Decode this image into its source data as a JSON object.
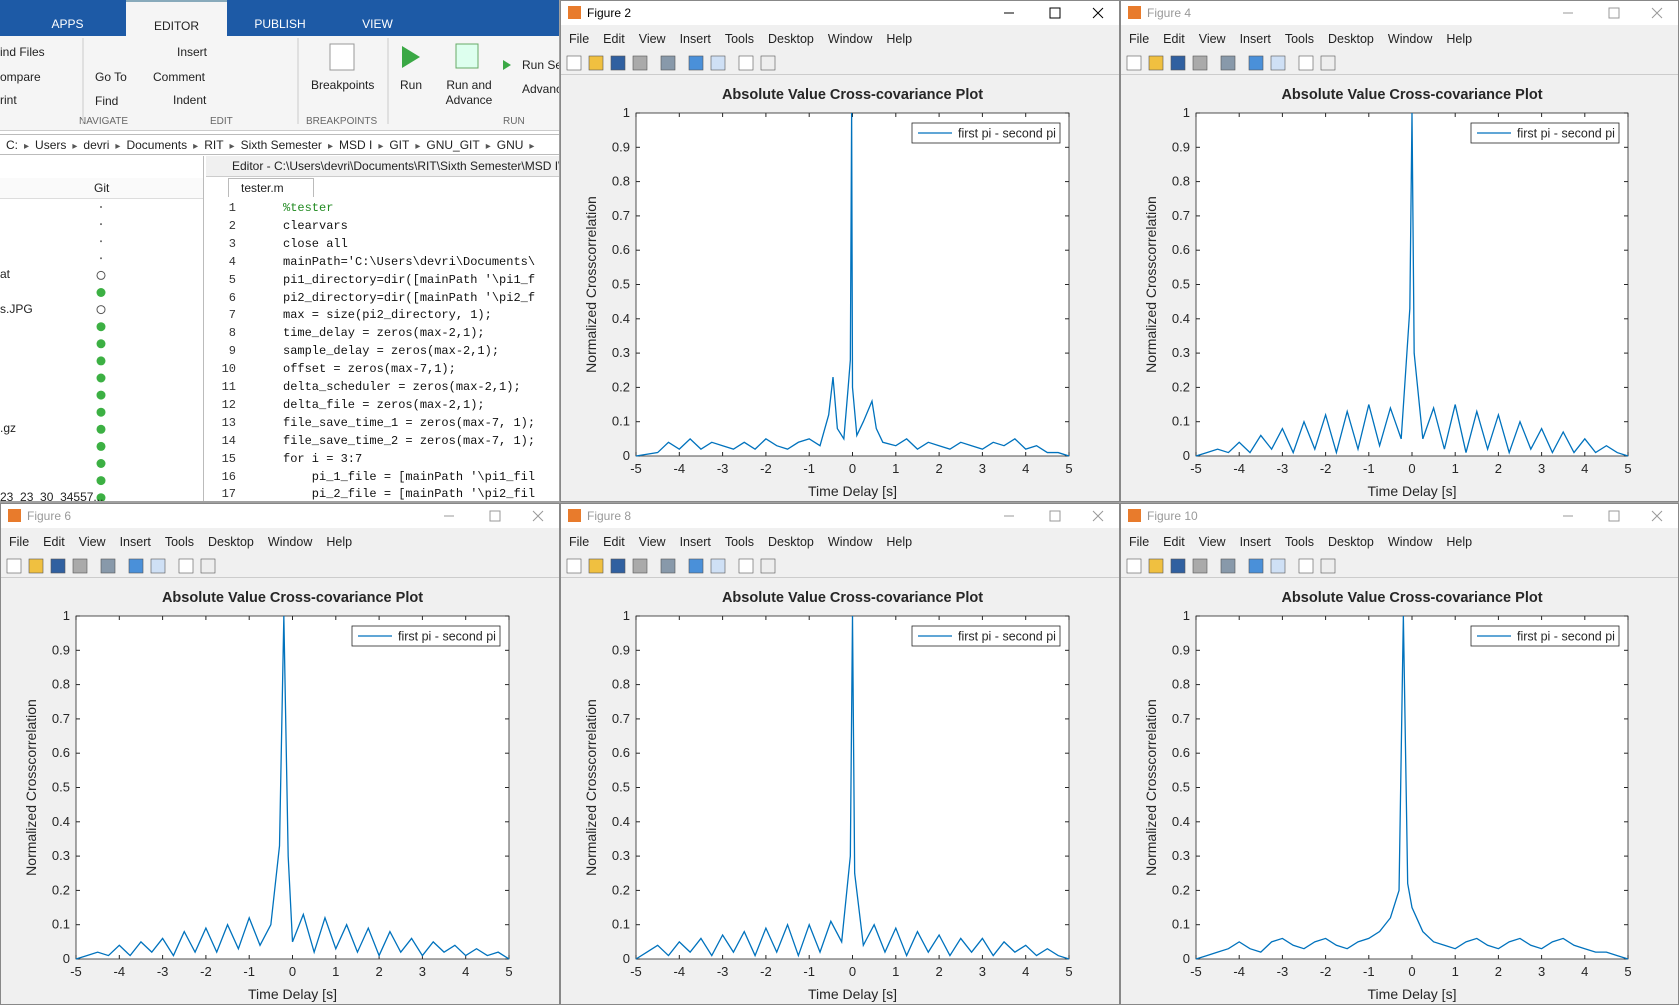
{
  "editor": {
    "tabs": [
      "APPS",
      "EDITOR",
      "PUBLISH",
      "VIEW"
    ],
    "toolbar": {
      "find_files": "ind Files",
      "compare": "ompare",
      "print": "rint",
      "go_to": "Go To",
      "find": "Find",
      "insert": "Insert",
      "comment": "Comment",
      "indent": "Indent",
      "breakpoints": "Breakpoints",
      "run": "Run",
      "run_and_advance": "Run and Advance",
      "run_section": "Run Se",
      "advance": "Advanc",
      "sections": [
        "NAVIGATE",
        "EDIT",
        "BREAKPOINTS",
        "RUN"
      ]
    },
    "path": [
      "C:",
      "Users",
      "devri",
      "Documents",
      "RIT",
      "Sixth Semester",
      "MSD I",
      "GIT",
      "GNU_GIT",
      "GNU"
    ],
    "files_header": "Git",
    "files": [
      "at",
      "s.JPG",
      ".gz",
      "23_23_30_34557..."
    ],
    "editor_title": "Editor - C:\\Users\\devri\\Documents\\RIT\\Sixth Semester\\MSD I\\",
    "file_tab": "tester.m",
    "line_numbers": [
      1,
      2,
      3,
      4,
      5,
      6,
      7,
      8,
      9,
      10,
      11,
      12,
      13,
      14,
      15,
      16,
      17
    ],
    "code": [
      "%tester",
      "clearvars",
      "close all",
      "mainPath='C:\\Users\\devri\\Documents\\",
      "pi1_directory=dir([mainPath '\\pi1_f",
      "pi2_directory=dir([mainPath '\\pi2_f",
      "max = size(pi2_directory, 1);",
      "time_delay = zeros(max-2,1);",
      "sample_delay = zeros(max-2,1);",
      "offset = zeros(max-7,1);",
      "delta_scheduler = zeros(max-2,1);",
      "delta_file = zeros(max-2,1);",
      "file_save_time_1 = zeros(max-7, 1);",
      "file_save_time_2 = zeros(max-7, 1);",
      "for i = 3:7",
      "    pi_1_file = [mainPath '\\pi1_fil",
      "    pi_2_file = [mainPath '\\pi2_fil"
    ]
  },
  "figure_menu": [
    "File",
    "Edit",
    "View",
    "Insert",
    "Tools",
    "Desktop",
    "Window",
    "Help"
  ],
  "windows": [
    {
      "title": "Figure 2",
      "active": true
    },
    {
      "title": "Figure 4",
      "active": false
    },
    {
      "title": "Figure 6",
      "active": false
    },
    {
      "title": "Figure 8",
      "active": false
    },
    {
      "title": "Figure 10",
      "active": false
    }
  ],
  "chart_data": [
    {
      "type": "line",
      "title": "Absolute Value Cross-covariance Plot",
      "xlabel": "Time Delay [s]",
      "ylabel": "Normalized Crosscorrelation",
      "x": [
        -5,
        -4.5,
        -4.25,
        -4,
        -3.75,
        -3.5,
        -3.25,
        -3,
        -2.75,
        -2.5,
        -2.25,
        -2,
        -1.75,
        -1.5,
        -1.25,
        -1,
        -0.75,
        -0.55,
        -0.45,
        -0.35,
        -0.2,
        -0.1,
        -0.05,
        -0.02,
        0,
        0.1,
        0.25,
        0.45,
        0.55,
        0.7,
        1,
        1.25,
        1.5,
        1.75,
        2,
        2.25,
        2.5,
        2.75,
        3,
        3.25,
        3.5,
        3.75,
        4,
        4.25,
        4.5,
        4.75,
        5
      ],
      "series": [
        {
          "name": "first pi - second pi",
          "color": "#0072bd",
          "values": [
            0,
            0.01,
            0.04,
            0.02,
            0.05,
            0.02,
            0.04,
            0.03,
            0.02,
            0.04,
            0.02,
            0.05,
            0.03,
            0.02,
            0.04,
            0.05,
            0.03,
            0.12,
            0.23,
            0.08,
            0.05,
            0.2,
            0.28,
            1,
            0.2,
            0.06,
            0.1,
            0.16,
            0.08,
            0.04,
            0.03,
            0.05,
            0.02,
            0.04,
            0.03,
            0.02,
            0.04,
            0.03,
            0.02,
            0.04,
            0.03,
            0.05,
            0.02,
            0.03,
            0.01,
            0.01,
            0
          ]
        }
      ],
      "xlim": [
        -5,
        5
      ],
      "ylim": [
        0,
        1
      ],
      "xticks": [
        -5,
        -4,
        -3,
        -2,
        -1,
        0,
        1,
        2,
        3,
        4,
        5
      ],
      "yticks": [
        0,
        0.1,
        0.2,
        0.3,
        0.4,
        0.5,
        0.6,
        0.7,
        0.8,
        0.9,
        1
      ],
      "legend": "upper right"
    },
    {
      "type": "line",
      "title": "Absolute Value Cross-covariance Plot",
      "xlabel": "Time Delay [s]",
      "ylabel": "Normalized Crosscorrelation",
      "x": [
        -5,
        -4.75,
        -4.5,
        -4.25,
        -4,
        -3.75,
        -3.5,
        -3.25,
        -3,
        -2.75,
        -2.5,
        -2.25,
        -2,
        -1.75,
        -1.5,
        -1.25,
        -1,
        -0.75,
        -0.5,
        -0.25,
        -0.05,
        0,
        0.05,
        0.25,
        0.5,
        0.75,
        1,
        1.25,
        1.5,
        1.75,
        2,
        2.25,
        2.5,
        2.75,
        3,
        3.25,
        3.5,
        3.75,
        4,
        4.25,
        4.5,
        4.75,
        5
      ],
      "series": [
        {
          "name": "first pi - second pi",
          "color": "#0072bd",
          "values": [
            0,
            0.01,
            0.02,
            0.01,
            0.04,
            0.01,
            0.06,
            0.02,
            0.08,
            0.01,
            0.1,
            0.02,
            0.12,
            0.01,
            0.13,
            0.02,
            0.15,
            0.03,
            0.14,
            0.05,
            0.43,
            1,
            0.3,
            0.05,
            0.14,
            0.02,
            0.15,
            0.01,
            0.13,
            0.02,
            0.12,
            0.01,
            0.1,
            0.02,
            0.08,
            0.01,
            0.07,
            0.01,
            0.05,
            0.01,
            0.03,
            0.01,
            0
          ]
        }
      ],
      "xlim": [
        -5,
        5
      ],
      "ylim": [
        0,
        1
      ],
      "xticks": [
        -5,
        -4,
        -3,
        -2,
        -1,
        0,
        1,
        2,
        3,
        4,
        5
      ],
      "yticks": [
        0,
        0.1,
        0.2,
        0.3,
        0.4,
        0.5,
        0.6,
        0.7,
        0.8,
        0.9,
        1
      ],
      "legend": "upper right"
    },
    {
      "type": "line",
      "title": "Absolute Value Cross-covariance Plot",
      "xlabel": "Time Delay [s]",
      "ylabel": "Normalized Crosscorrelation",
      "x": [
        -5,
        -4.75,
        -4.5,
        -4.25,
        -4,
        -3.75,
        -3.5,
        -3.25,
        -3,
        -2.75,
        -2.5,
        -2.25,
        -2,
        -1.75,
        -1.5,
        -1.25,
        -1,
        -0.75,
        -0.5,
        -0.3,
        -0.2,
        -0.1,
        0,
        0.25,
        0.5,
        0.75,
        1,
        1.25,
        1.5,
        1.75,
        2,
        2.25,
        2.5,
        2.75,
        3,
        3.25,
        3.5,
        3.75,
        4,
        4.25,
        4.5,
        4.75,
        5
      ],
      "series": [
        {
          "name": "first pi - second pi",
          "color": "#0072bd",
          "values": [
            0,
            0.01,
            0.02,
            0.01,
            0.04,
            0.01,
            0.05,
            0.02,
            0.06,
            0.01,
            0.08,
            0.02,
            0.09,
            0.02,
            0.1,
            0.03,
            0.12,
            0.04,
            0.1,
            0.33,
            1,
            0.3,
            0.05,
            0.13,
            0.02,
            0.12,
            0.03,
            0.1,
            0.02,
            0.09,
            0.01,
            0.08,
            0.02,
            0.06,
            0.01,
            0.05,
            0.02,
            0.04,
            0.01,
            0.03,
            0.01,
            0.02,
            0
          ]
        }
      ],
      "xlim": [
        -5,
        5
      ],
      "ylim": [
        0,
        1
      ],
      "xticks": [
        -5,
        -4,
        -3,
        -2,
        -1,
        0,
        1,
        2,
        3,
        4,
        5
      ],
      "yticks": [
        0,
        0.1,
        0.2,
        0.3,
        0.4,
        0.5,
        0.6,
        0.7,
        0.8,
        0.9,
        1
      ],
      "legend": "upper right"
    },
    {
      "type": "line",
      "title": "Absolute Value Cross-covariance Plot",
      "xlabel": "Time Delay [s]",
      "ylabel": "Normalized Crosscorrelation",
      "x": [
        -5,
        -4.75,
        -4.5,
        -4.25,
        -4,
        -3.75,
        -3.5,
        -3.25,
        -3,
        -2.75,
        -2.5,
        -2.25,
        -2,
        -1.75,
        -1.5,
        -1.25,
        -1,
        -0.75,
        -0.5,
        -0.25,
        -0.05,
        0,
        0.05,
        0.25,
        0.5,
        0.75,
        1,
        1.25,
        1.5,
        1.75,
        2,
        2.25,
        2.5,
        2.75,
        3,
        3.25,
        3.5,
        3.75,
        4,
        4.25,
        4.5,
        4.75,
        5
      ],
      "series": [
        {
          "name": "first pi - second pi",
          "color": "#0072bd",
          "values": [
            0,
            0.02,
            0.04,
            0.01,
            0.05,
            0.02,
            0.06,
            0.01,
            0.07,
            0.02,
            0.08,
            0.01,
            0.09,
            0.02,
            0.1,
            0.01,
            0.1,
            0.02,
            0.11,
            0.05,
            0.3,
            1,
            0.25,
            0.04,
            0.1,
            0.02,
            0.09,
            0.01,
            0.08,
            0.02,
            0.07,
            0.01,
            0.06,
            0.02,
            0.06,
            0.01,
            0.05,
            0.02,
            0.04,
            0.01,
            0.03,
            0.01,
            0
          ]
        }
      ],
      "xlim": [
        -5,
        5
      ],
      "ylim": [
        0,
        1
      ],
      "xticks": [
        -5,
        -4,
        -3,
        -2,
        -1,
        0,
        1,
        2,
        3,
        4,
        5
      ],
      "yticks": [
        0,
        0.1,
        0.2,
        0.3,
        0.4,
        0.5,
        0.6,
        0.7,
        0.8,
        0.9,
        1
      ],
      "legend": "upper right"
    },
    {
      "type": "line",
      "title": "Absolute Value Cross-covariance Plot",
      "xlabel": "Time Delay [s]",
      "ylabel": "Normalized Crosscorrelation",
      "x": [
        -5,
        -4.75,
        -4.5,
        -4.25,
        -4,
        -3.75,
        -3.5,
        -3.25,
        -3,
        -2.75,
        -2.5,
        -2.25,
        -2,
        -1.75,
        -1.5,
        -1.25,
        -1,
        -0.75,
        -0.5,
        -0.3,
        -0.2,
        -0.1,
        0,
        0.25,
        0.5,
        0.75,
        1,
        1.25,
        1.5,
        1.75,
        2,
        2.25,
        2.5,
        2.75,
        3,
        3.25,
        3.5,
        3.75,
        4,
        4.25,
        4.5,
        4.75,
        5
      ],
      "series": [
        {
          "name": "first pi - second pi",
          "color": "#0072bd",
          "values": [
            0,
            0.01,
            0.02,
            0.03,
            0.05,
            0.03,
            0.02,
            0.05,
            0.06,
            0.04,
            0.03,
            0.05,
            0.06,
            0.04,
            0.03,
            0.05,
            0.06,
            0.08,
            0.12,
            0.2,
            1,
            0.22,
            0.15,
            0.08,
            0.05,
            0.04,
            0.03,
            0.05,
            0.06,
            0.04,
            0.03,
            0.05,
            0.06,
            0.04,
            0.03,
            0.05,
            0.06,
            0.04,
            0.03,
            0.02,
            0.02,
            0.01,
            0
          ]
        }
      ],
      "xlim": [
        -5,
        5
      ],
      "ylim": [
        0,
        1
      ],
      "xticks": [
        -5,
        -4,
        -3,
        -2,
        -1,
        0,
        1,
        2,
        3,
        4,
        5
      ],
      "yticks": [
        0,
        0.1,
        0.2,
        0.3,
        0.4,
        0.5,
        0.6,
        0.7,
        0.8,
        0.9,
        1
      ],
      "legend": "upper right"
    }
  ]
}
